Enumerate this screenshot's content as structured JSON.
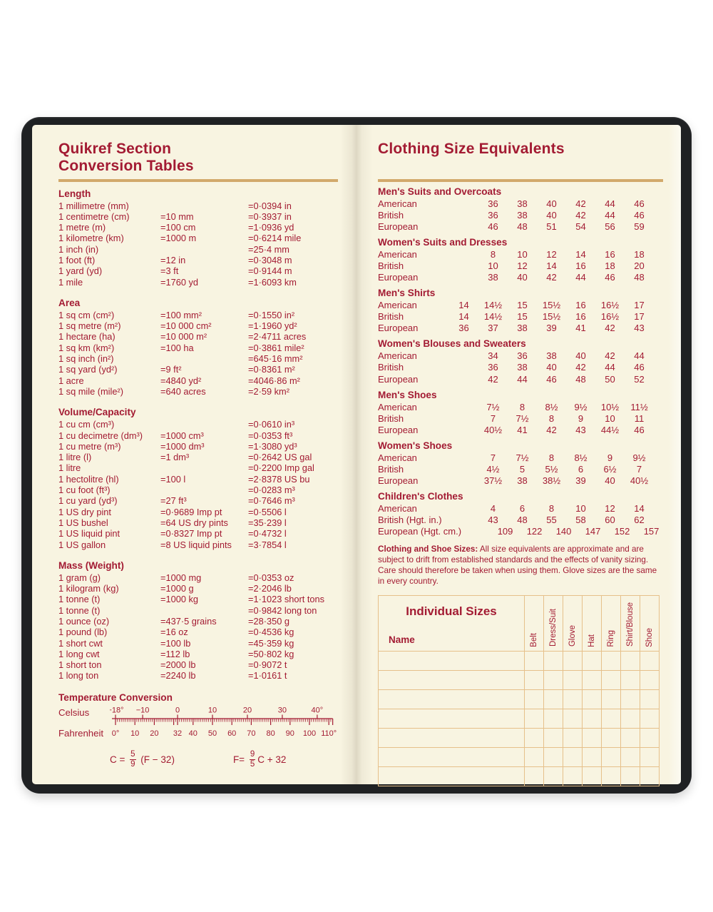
{
  "colors": {
    "crimson": "#a31b33",
    "gold": "#d2a96b",
    "page": "#f8f4e1",
    "cover": "#1f2123",
    "grid": "#e6c08a"
  },
  "left_page": {
    "title_line1": "Quikref Section",
    "title_line2": "Conversion Tables",
    "sections": [
      {
        "heading": "Length",
        "rows": [
          [
            "1 millimetre (mm)",
            "",
            "=0·0394 in"
          ],
          [
            "1 centimetre (cm)",
            "=10 mm",
            "=0·3937 in"
          ],
          [
            "1 metre (m)",
            "=100 cm",
            "=1·0936 yd"
          ],
          [
            "1 kilometre (km)",
            "=1000 m",
            "=0·6214 mile"
          ],
          [
            "1 inch (in)",
            "",
            "=25·4 mm"
          ],
          [
            "1 foot (ft)",
            "=12 in",
            "=0·3048 m"
          ],
          [
            "1 yard (yd)",
            "=3 ft",
            "=0·9144 m"
          ],
          [
            "1 mile",
            "=1760 yd",
            "=1·6093 km"
          ]
        ]
      },
      {
        "heading": "Area",
        "rows": [
          [
            "1 sq cm (cm²)",
            "=100 mm²",
            "=0·1550 in²"
          ],
          [
            "1 sq metre (m²)",
            "=10 000 cm²",
            "=1·1960 yd²"
          ],
          [
            "1 hectare (ha)",
            "=10 000 m²",
            "=2·4711 acres"
          ],
          [
            "1 sq km (km²)",
            "=100 ha",
            "=0·3861 mile²"
          ],
          [
            "1 sq inch (in²)",
            "",
            "=645·16 mm²"
          ],
          [
            "1 sq yard (yd²)",
            "=9 ft²",
            "=0·8361 m²"
          ],
          [
            "1 acre",
            "=4840 yd²",
            "=4046·86 m²"
          ],
          [
            "1 sq mile (mile²)",
            "=640 acres",
            "=2·59 km²"
          ]
        ]
      },
      {
        "heading": "Volume/Capacity",
        "rows": [
          [
            "1 cu cm (cm³)",
            "",
            "=0·0610 in³"
          ],
          [
            "1 cu decimetre (dm³)",
            "=1000 cm³",
            "=0·0353 ft³"
          ],
          [
            "1 cu metre (m³)",
            "=1000 dm³",
            "=1·3080 yd³"
          ],
          [
            "1 litre (l)",
            "=1 dm³",
            "=0·2642 US gal"
          ],
          [
            "1 litre",
            "",
            "=0·2200 Imp gal"
          ],
          [
            "1 hectolitre (hl)",
            "=100 l",
            "=2·8378 US bu"
          ],
          [
            "1 cu foot (ft³)",
            "",
            "=0·0283 m³"
          ],
          [
            "1 cu yard (yd³)",
            "=27 ft³",
            "=0·7646 m³"
          ],
          [
            "1 US dry pint",
            "=0·9689 Imp pt",
            "=0·5506 l"
          ],
          [
            "1 US bushel",
            "=64 US dry pints",
            "=35·239 l"
          ],
          [
            "1 US liquid pint",
            "=0·8327 Imp pt",
            "=0·4732 l"
          ],
          [
            "1 US gallon",
            "=8 US liquid pints",
            "=3·7854 l"
          ]
        ]
      },
      {
        "heading": "Mass (Weight)",
        "rows": [
          [
            "1 gram (g)",
            "=1000 mg",
            "=0·0353 oz"
          ],
          [
            "1 kilogram (kg)",
            "=1000 g",
            "=2·2046 lb"
          ],
          [
            "1 tonne (t)",
            "=1000 kg",
            "=1·1023 short tons"
          ],
          [
            "1 tonne (t)",
            "",
            "=0·9842 long ton"
          ],
          [
            "1 ounce (oz)",
            "=437·5 grains",
            "=28·350 g"
          ],
          [
            "1 pound (lb)",
            "=16 oz",
            "=0·4536 kg"
          ],
          [
            "1 short cwt",
            "=100 lb",
            "=45·359 kg"
          ],
          [
            "1 long cwt",
            "=112 lb",
            "=50·802 kg"
          ],
          [
            "1 short ton",
            "=2000 lb",
            "=0·9072 t"
          ],
          [
            "1 long ton",
            "=2240 lb",
            "=1·0161 t"
          ]
        ]
      }
    ],
    "temperature": {
      "heading": "Temperature Conversion",
      "celsius_label": "Celsius",
      "fahrenheit_label": "Fahrenheit",
      "celsius_labels": [
        {
          "text": "−18°",
          "f": 0
        },
        {
          "text": "−10",
          "f": 14
        },
        {
          "text": "0",
          "f": 32
        },
        {
          "text": "10",
          "f": 50
        },
        {
          "text": "20",
          "f": 68
        },
        {
          "text": "30",
          "f": 86
        },
        {
          "text": "40°",
          "f": 104
        }
      ],
      "fahrenheit_labels": [
        {
          "text": "0°",
          "f": 0
        },
        {
          "text": "10",
          "f": 10
        },
        {
          "text": "20",
          "f": 20
        },
        {
          "text": "32",
          "f": 32
        },
        {
          "text": "40",
          "f": 40
        },
        {
          "text": "50",
          "f": 50
        },
        {
          "text": "60",
          "f": 60
        },
        {
          "text": "70",
          "f": 70
        },
        {
          "text": "80",
          "f": 80
        },
        {
          "text": "90",
          "f": 90
        },
        {
          "text": "100",
          "f": 100
        },
        {
          "text": "110°",
          "f": 110
        }
      ],
      "celsius_tick_f": [
        0,
        14,
        32,
        50,
        68,
        86,
        104
      ],
      "formulas": [
        {
          "lhs": "C = ",
          "num": "5",
          "den": "9",
          "rhs": " (F − 32)"
        },
        {
          "lhs": "F= ",
          "num": "9",
          "den": "5",
          "rhs": "C + 32"
        }
      ]
    }
  },
  "right_page": {
    "title": "Clothing Size Equivalents",
    "size_sections": [
      {
        "heading": "Men's Suits and Overcoats",
        "rows": [
          {
            "label": "American",
            "values": [
              "36",
              "38",
              "40",
              "42",
              "44",
              "46"
            ]
          },
          {
            "label": "British",
            "values": [
              "36",
              "38",
              "40",
              "42",
              "44",
              "46"
            ]
          },
          {
            "label": "European",
            "values": [
              "46",
              "48",
              "51",
              "54",
              "56",
              "59"
            ]
          }
        ]
      },
      {
        "heading": "Women's Suits and Dresses",
        "rows": [
          {
            "label": "American",
            "values": [
              "8",
              "10",
              "12",
              "14",
              "16",
              "18"
            ]
          },
          {
            "label": "British",
            "values": [
              "10",
              "12",
              "14",
              "16",
              "18",
              "20"
            ]
          },
          {
            "label": "European",
            "values": [
              "38",
              "40",
              "42",
              "44",
              "46",
              "48"
            ]
          }
        ]
      },
      {
        "heading": "Men's Shirts",
        "rows": [
          {
            "label": "American",
            "values": [
              "14",
              "14½",
              "15",
              "15½",
              "16",
              "16½",
              "17"
            ]
          },
          {
            "label": "British",
            "values": [
              "14",
              "14½",
              "15",
              "15½",
              "16",
              "16½",
              "17"
            ]
          },
          {
            "label": "European",
            "values": [
              "36",
              "37",
              "38",
              "39",
              "41",
              "42",
              "43"
            ]
          }
        ]
      },
      {
        "heading": "Women's Blouses and Sweaters",
        "rows": [
          {
            "label": "American",
            "values": [
              "34",
              "36",
              "38",
              "40",
              "42",
              "44"
            ]
          },
          {
            "label": "British",
            "values": [
              "36",
              "38",
              "40",
              "42",
              "44",
              "46"
            ]
          },
          {
            "label": "European",
            "values": [
              "42",
              "44",
              "46",
              "48",
              "50",
              "52"
            ]
          }
        ]
      },
      {
        "heading": "Men's Shoes",
        "rows": [
          {
            "label": "American",
            "values": [
              "7½",
              "8",
              "8½",
              "9½",
              "10½",
              "11½"
            ]
          },
          {
            "label": "British",
            "values": [
              "7",
              "7½",
              "8",
              "9",
              "10",
              "11"
            ]
          },
          {
            "label": "European",
            "values": [
              "40½",
              "41",
              "42",
              "43",
              "44½",
              "46"
            ]
          }
        ]
      },
      {
        "heading": "Women's Shoes",
        "rows": [
          {
            "label": "American",
            "values": [
              "7",
              "7½",
              "8",
              "8½",
              "9",
              "9½"
            ]
          },
          {
            "label": "British",
            "values": [
              "4½",
              "5",
              "5½",
              "6",
              "6½",
              "7"
            ]
          },
          {
            "label": "European",
            "values": [
              "37½",
              "38",
              "38½",
              "39",
              "40",
              "40½"
            ]
          }
        ]
      },
      {
        "heading": "Children's Clothes",
        "rows": [
          {
            "label": "American",
            "values": [
              "4",
              "6",
              "8",
              "10",
              "12",
              "14"
            ]
          },
          {
            "label": "British (Hgt. in.)",
            "values": [
              "43",
              "48",
              "55",
              "58",
              "60",
              "62"
            ]
          },
          {
            "label": "European (Hgt. cm.)",
            "values": [
              "109",
              "122",
              "140",
              "147",
              "152",
              "157"
            ]
          }
        ]
      }
    ],
    "note": {
      "lead": "Clothing and Shoe Sizes:",
      "body": " All size equivalents are approximate and are subject to drift from established standards and the effects of vanity sizing. Care should therefore be taken when using them. Glove sizes are the same in every country."
    },
    "individual_sizes": {
      "title": "Individual Sizes",
      "name_label": "Name",
      "columns": [
        "Belt",
        "Dress/Suit",
        "Glove",
        "Hat",
        "Ring",
        "Shirt/Blouse",
        "Shoe"
      ],
      "empty_rows": 7
    }
  }
}
